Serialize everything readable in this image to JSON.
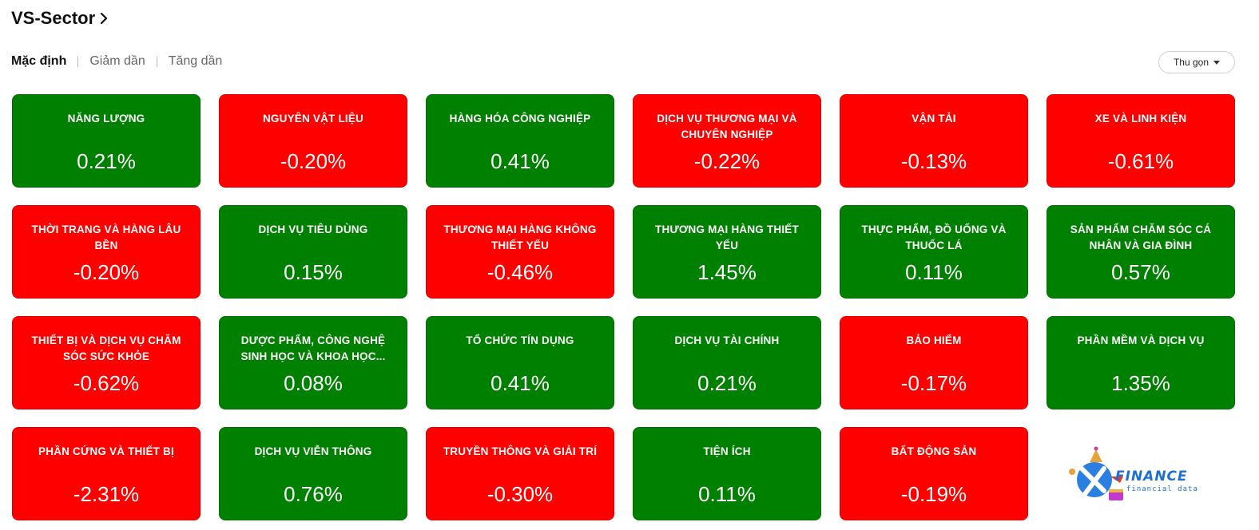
{
  "header": {
    "title": "VS-Sector"
  },
  "sort": {
    "default": "Mặc định",
    "desc": "Giảm dần",
    "asc": "Tăng dần"
  },
  "collapse_label": "Thu gọn",
  "colors": {
    "up": "#008000",
    "down": "#ff0000"
  },
  "sectors": [
    {
      "name": "NĂNG LƯỢNG",
      "value": "0.21%"
    },
    {
      "name": "NGUYÊN VẬT LIỆU",
      "value": "-0.20%"
    },
    {
      "name": "HÀNG HÓA CÔNG NGHIỆP",
      "value": "0.41%"
    },
    {
      "name": "DỊCH VỤ THƯƠNG MẠI VÀ CHUYÊN NGHIỆP",
      "value": "-0.22%"
    },
    {
      "name": "VẬN TẢI",
      "value": "-0.13%"
    },
    {
      "name": "XE VÀ LINH KIỆN",
      "value": "-0.61%"
    },
    {
      "name": "THỜI TRANG VÀ HÀNG LÂU BỀN",
      "value": "-0.20%"
    },
    {
      "name": "DỊCH VỤ TIÊU DÙNG",
      "value": "0.15%"
    },
    {
      "name": "THƯƠNG MẠI HÀNG KHÔNG THIẾT YẾU",
      "value": "-0.46%"
    },
    {
      "name": "THƯƠNG MẠI HÀNG THIẾT YẾU",
      "value": "1.45%"
    },
    {
      "name": "THỰC PHẨM, ĐỒ UỐNG VÀ THUỐC LÁ",
      "value": "0.11%"
    },
    {
      "name": "SẢN PHẨM CHĂM SÓC CÁ NHÂN VÀ GIA ĐÌNH",
      "value": "0.57%"
    },
    {
      "name": "THIẾT BỊ VÀ DỊCH VỤ CHĂM SÓC SỨC KHỎE",
      "value": "-0.62%"
    },
    {
      "name": "DƯỢC PHẨM, CÔNG NGHỆ SINH HỌC VÀ KHOA HỌC...",
      "value": "0.08%"
    },
    {
      "name": "TỔ CHỨC TÍN DỤNG",
      "value": "0.41%"
    },
    {
      "name": "DỊCH VỤ TÀI CHÍNH",
      "value": "0.21%"
    },
    {
      "name": "BẢO HIỂM",
      "value": "-0.17%"
    },
    {
      "name": "PHẦN MỀM VÀ DỊCH VỤ",
      "value": "1.35%"
    },
    {
      "name": "PHẦN CỨNG VÀ THIẾT BỊ",
      "value": "-2.31%"
    },
    {
      "name": "DỊCH VỤ VIỄN THÔNG",
      "value": "0.76%"
    },
    {
      "name": "TRUYỀN THÔNG VÀ GIẢI TRÍ",
      "value": "-0.30%"
    },
    {
      "name": "TIỆN ÍCH",
      "value": "0.11%"
    },
    {
      "name": "BẤT ĐỘNG SẢN",
      "value": "-0.19%"
    }
  ],
  "logo": {
    "word": "FINANCE",
    "sub": "financial data",
    "icon": "vietstock-finance-logo-icon"
  }
}
